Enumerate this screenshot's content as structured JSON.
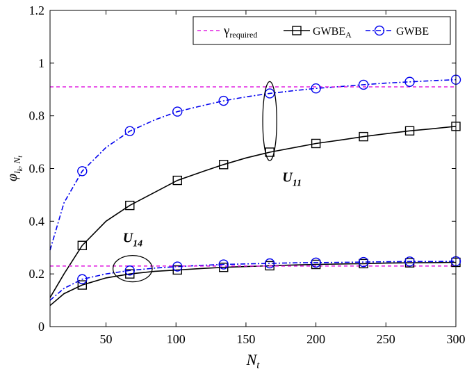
{
  "chart_data": {
    "type": "line",
    "xlim": [
      10,
      300
    ],
    "ylim": [
      0,
      1.2
    ],
    "xticks": [
      50,
      100,
      150,
      200,
      250,
      300
    ],
    "yticks": [
      0,
      0.2,
      0.4,
      0.6,
      0.8,
      1,
      1.2
    ],
    "xtick_labels": [
      "50",
      "100",
      "150",
      "200",
      "250",
      "300"
    ],
    "ytick_labels": [
      "0",
      "0.2",
      "0.4",
      "0.6",
      "0.8",
      "1",
      "1.2"
    ],
    "xlabel": "N",
    "xlabel_sub": "t",
    "ylabel": "φ",
    "ylabel_sub": "l",
    "ylabel_subsub": "k",
    "ylabel_sub2": ", N",
    "ylabel_sub2sub": "t",
    "grid": false,
    "legend_position": "top-right",
    "legend": [
      {
        "label": "γ",
        "sub": "required",
        "color": "#e020e0",
        "style": "dashed",
        "marker": "none"
      },
      {
        "label": "GWBE",
        "sub": "A",
        "color": "#000000",
        "style": "solid",
        "marker": "square"
      },
      {
        "label": "GWBE",
        "sub": "",
        "color": "#0000ee",
        "style": "dashdot",
        "marker": "circle"
      }
    ],
    "series": [
      {
        "group": "U11",
        "style": "solid",
        "color": "#000000",
        "marker": "square",
        "x": [
          10,
          20,
          33,
          50,
          67,
          85,
          101,
          120,
          134,
          150,
          167,
          185,
          200,
          220,
          234,
          250,
          267,
          285,
          300
        ],
        "y": [
          0.11,
          0.2,
          0.308,
          0.4,
          0.46,
          0.51,
          0.555,
          0.59,
          0.615,
          0.64,
          0.662,
          0.68,
          0.695,
          0.71,
          0.721,
          0.732,
          0.743,
          0.752,
          0.76
        ],
        "markers_x": [
          33,
          67,
          101,
          134,
          167,
          200,
          234,
          267,
          300
        ],
        "markers_y": [
          0.308,
          0.46,
          0.555,
          0.615,
          0.662,
          0.695,
          0.721,
          0.743,
          0.76
        ]
      },
      {
        "group": "U11",
        "style": "dashdot",
        "color": "#0000ee",
        "marker": "circle",
        "x": [
          10,
          20,
          33,
          50,
          67,
          85,
          101,
          120,
          134,
          150,
          167,
          185,
          200,
          220,
          234,
          250,
          267,
          285,
          300
        ],
        "y": [
          0.29,
          0.47,
          0.59,
          0.68,
          0.742,
          0.785,
          0.816,
          0.84,
          0.857,
          0.872,
          0.885,
          0.896,
          0.904,
          0.912,
          0.918,
          0.924,
          0.929,
          0.934,
          0.937
        ],
        "markers_x": [
          33,
          67,
          101,
          134,
          167,
          200,
          234,
          267,
          300
        ],
        "markers_y": [
          0.59,
          0.742,
          0.816,
          0.857,
          0.885,
          0.904,
          0.918,
          0.929,
          0.937
        ]
      },
      {
        "group": "U14",
        "style": "solid",
        "color": "#000000",
        "marker": "square",
        "x": [
          10,
          20,
          33,
          50,
          67,
          85,
          101,
          120,
          134,
          150,
          167,
          185,
          200,
          220,
          234,
          250,
          267,
          285,
          300
        ],
        "y": [
          0.08,
          0.125,
          0.158,
          0.185,
          0.2,
          0.21,
          0.215,
          0.221,
          0.225,
          0.228,
          0.231,
          0.234,
          0.236,
          0.238,
          0.239,
          0.241,
          0.242,
          0.243,
          0.244
        ],
        "markers_x": [
          33,
          67,
          101,
          134,
          167,
          200,
          234,
          267,
          300
        ],
        "markers_y": [
          0.158,
          0.2,
          0.215,
          0.225,
          0.231,
          0.236,
          0.239,
          0.242,
          0.244
        ]
      },
      {
        "group": "U14",
        "style": "dashdot",
        "color": "#0000ee",
        "marker": "circle",
        "x": [
          10,
          20,
          33,
          50,
          67,
          85,
          101,
          120,
          134,
          150,
          167,
          185,
          200,
          220,
          234,
          250,
          267,
          285,
          300
        ],
        "y": [
          0.1,
          0.145,
          0.18,
          0.2,
          0.213,
          0.222,
          0.228,
          0.233,
          0.236,
          0.238,
          0.24,
          0.242,
          0.243,
          0.244,
          0.245,
          0.246,
          0.247,
          0.247,
          0.248
        ],
        "markers_x": [
          33,
          67,
          101,
          134,
          167,
          200,
          234,
          267,
          300
        ],
        "markers_y": [
          0.18,
          0.213,
          0.228,
          0.236,
          0.24,
          0.243,
          0.245,
          0.247,
          0.248
        ]
      },
      {
        "group": "U11",
        "style": "dashed",
        "color": "#e020e0",
        "marker": "none",
        "x": [
          10,
          300
        ],
        "y": [
          0.91,
          0.91
        ]
      },
      {
        "group": "U14",
        "style": "dashed",
        "color": "#e020e0",
        "marker": "none",
        "x": [
          10,
          300
        ],
        "y": [
          0.23,
          0.23
        ]
      }
    ],
    "annotations": [
      {
        "label": "U",
        "sub": "11",
        "x": 176,
        "y": 0.55,
        "ellipse": {
          "cx": 167,
          "cy": 0.78,
          "rx": 5,
          "ry": 0.15
        }
      },
      {
        "label": "U",
        "sub": "14",
        "x": 62,
        "y": 0.32,
        "ellipse": {
          "cx": 69,
          "cy": 0.22,
          "rx": 14,
          "ry": 0.05
        }
      }
    ]
  }
}
